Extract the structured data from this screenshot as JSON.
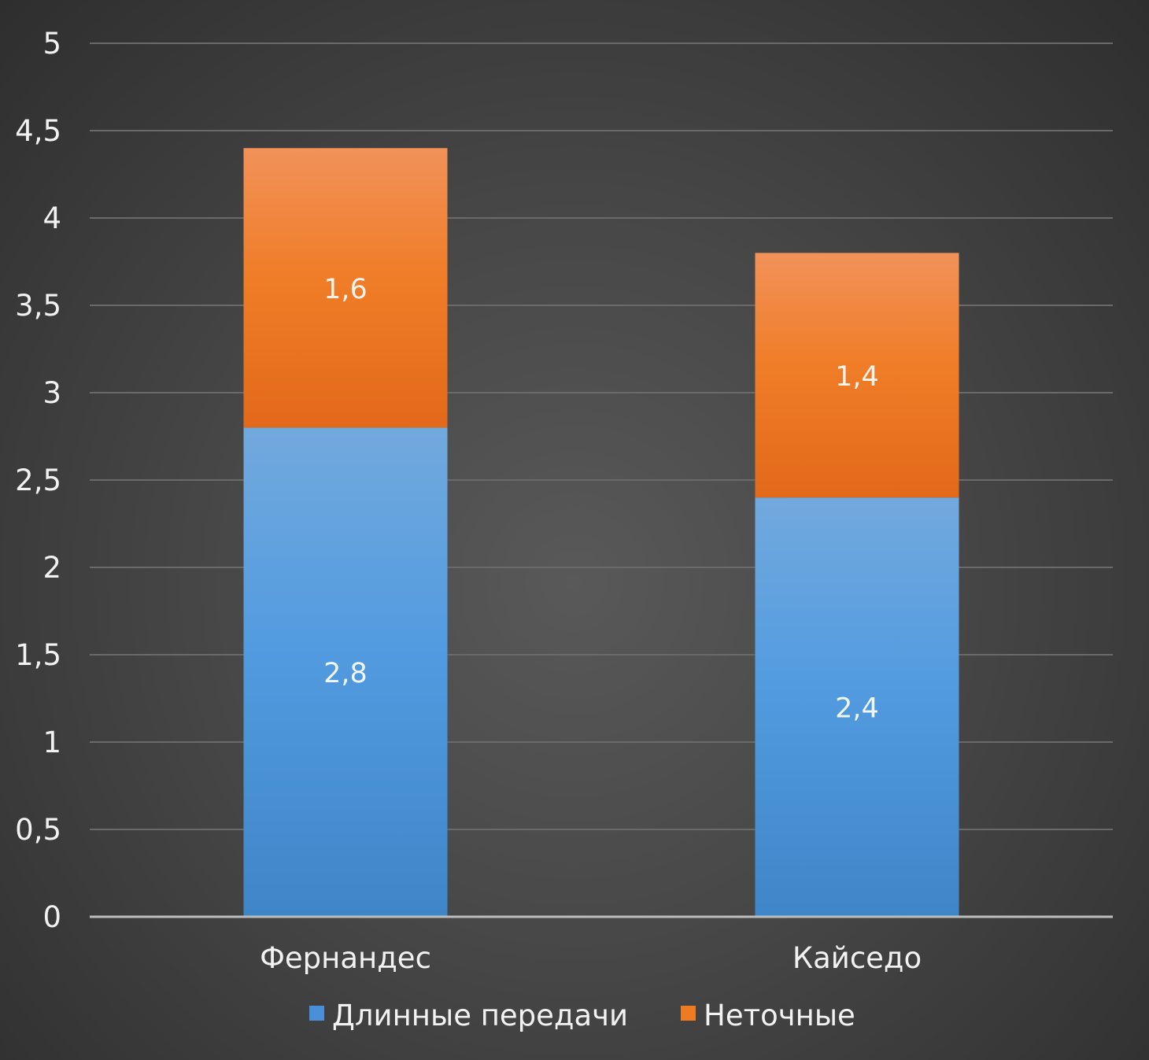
{
  "chart_data": {
    "type": "bar",
    "stacked": true,
    "categories": [
      "Фернандес",
      "Кайседо"
    ],
    "series": [
      {
        "name": "Длинные передачи",
        "values": [
          2.8,
          2.4
        ],
        "value_labels": [
          "2,8",
          "2,4"
        ],
        "color": "#4a90d9"
      },
      {
        "name": "Неточные",
        "values": [
          1.6,
          1.4
        ],
        "value_labels": [
          "1,6",
          "1,4"
        ],
        "color": "#ee7a22"
      }
    ],
    "ylim": [
      0,
      5
    ],
    "yticks": [
      0,
      0.5,
      1,
      1.5,
      2,
      2.5,
      3,
      3.5,
      4,
      4.5,
      5
    ],
    "ytick_labels": [
      "0",
      "0,5",
      "1",
      "1,5",
      "2",
      "2,5",
      "3",
      "3,5",
      "4",
      "4,5",
      "5"
    ],
    "grid": true,
    "legend_position": "bottom",
    "title": "",
    "xlabel": "",
    "ylabel": ""
  }
}
